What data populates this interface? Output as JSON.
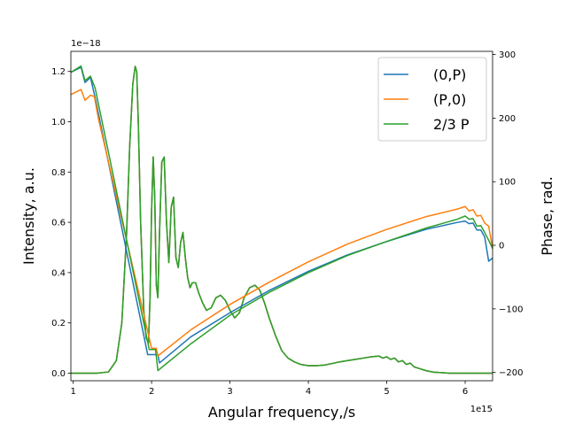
{
  "chart_data": {
    "type": "line",
    "xlabel": "Angular frequency,/s",
    "ylabel_left": "Intensity, a.u.",
    "ylabel_right": "Phase, rad.",
    "x_offset_text": "1e15",
    "y_left_offset_text": "1e−18",
    "x_scale": 1000000000000000.0,
    "y_left_scale": 1e-18,
    "xlim": [
      0.97,
      6.35
    ],
    "ylim_left": [
      -0.03,
      1.28
    ],
    "ylim_right": [
      -213,
      305
    ],
    "x_ticks": [
      1,
      2,
      3,
      4,
      5,
      6
    ],
    "y_left_ticks": [
      0.0,
      0.2,
      0.4,
      0.6,
      0.8,
      1.0,
      1.2
    ],
    "y_left_tick_labels": [
      "0.0",
      "0.2",
      "0.4",
      "0.6",
      "0.8",
      "1.0",
      "1.2"
    ],
    "y_right_ticks": [
      -200,
      -100,
      0,
      100,
      200,
      300
    ],
    "y_right_tick_labels": [
      "−200",
      "−100",
      "0",
      "100",
      "200",
      "300"
    ],
    "grid": false,
    "legend_position": "top-right",
    "intensity": {
      "x": [
        0.97,
        1.3,
        1.45,
        1.55,
        1.62,
        1.68,
        1.72,
        1.76,
        1.79,
        1.81,
        1.83,
        1.86,
        1.9,
        1.93,
        1.96,
        1.98,
        2.0,
        2.02,
        2.04,
        2.06,
        2.08,
        2.1,
        2.13,
        2.16,
        2.19,
        2.22,
        2.25,
        2.28,
        2.31,
        2.34,
        2.37,
        2.4,
        2.43,
        2.46,
        2.49,
        2.52,
        2.56,
        2.6,
        2.65,
        2.7,
        2.76,
        2.82,
        2.88,
        2.94,
        3.0,
        3.06,
        3.12,
        3.18,
        3.25,
        3.32,
        3.38,
        3.44,
        3.5,
        3.58,
        3.66,
        3.74,
        3.82,
        3.9,
        4.0,
        4.1,
        4.2,
        4.3,
        4.4,
        4.5,
        4.6,
        4.7,
        4.8,
        4.9,
        4.95,
        5.0,
        5.05,
        5.1,
        5.15,
        5.2,
        5.25,
        5.3,
        5.35,
        5.4,
        5.5,
        5.6,
        5.7,
        5.8,
        5.9,
        6.0,
        6.1,
        6.2,
        6.35
      ],
      "y": [
        0.0,
        0.0,
        0.005,
        0.05,
        0.2,
        0.55,
        0.9,
        1.15,
        1.22,
        1.2,
        1.0,
        0.6,
        0.25,
        0.14,
        0.12,
        0.3,
        0.65,
        0.86,
        0.7,
        0.35,
        0.3,
        0.55,
        0.84,
        0.86,
        0.6,
        0.44,
        0.66,
        0.7,
        0.46,
        0.42,
        0.52,
        0.56,
        0.46,
        0.38,
        0.34,
        0.36,
        0.36,
        0.32,
        0.28,
        0.25,
        0.26,
        0.3,
        0.31,
        0.29,
        0.25,
        0.22,
        0.24,
        0.3,
        0.34,
        0.35,
        0.33,
        0.28,
        0.22,
        0.15,
        0.09,
        0.06,
        0.045,
        0.035,
        0.03,
        0.03,
        0.032,
        0.038,
        0.045,
        0.05,
        0.055,
        0.06,
        0.065,
        0.068,
        0.06,
        0.065,
        0.055,
        0.06,
        0.045,
        0.05,
        0.035,
        0.04,
        0.025,
        0.02,
        0.01,
        0.004,
        0.002,
        0.0,
        0.0,
        0.0,
        0.0,
        0.0,
        0.0
      ]
    },
    "series": [
      {
        "name": "(0,P)",
        "color": "#1f77b4",
        "x": [
          0.97,
          1.1,
          1.15,
          1.22,
          1.28,
          1.95,
          2.08,
          2.1,
          2.5,
          3.0,
          3.5,
          4.0,
          4.5,
          5.0,
          5.5,
          5.9,
          6.0,
          6.05,
          6.1,
          6.15,
          6.2,
          6.25,
          6.3,
          6.35
        ],
        "y": [
          272,
          280,
          256,
          264,
          232,
          -172,
          -172,
          -185,
          -144,
          -106,
          -71,
          -41,
          -15,
          6,
          25,
          36,
          38,
          34,
          35,
          24,
          24,
          13,
          -25,
          -20
        ]
      },
      {
        "name": "(P,0)",
        "color": "#ff7f0e",
        "x": [
          0.97,
          1.1,
          1.15,
          1.22,
          1.27,
          1.32,
          2.0,
          2.06,
          2.08,
          2.5,
          3.0,
          3.5,
          4.0,
          4.5,
          5.0,
          5.5,
          5.9,
          6.0,
          6.05,
          6.1,
          6.15,
          6.2,
          6.25,
          6.3,
          6.35
        ],
        "y": [
          237,
          245,
          228,
          236,
          234,
          200,
          -162,
          -162,
          -174,
          -133,
          -93,
          -58,
          -26,
          2,
          25,
          45,
          57,
          61,
          54,
          56,
          46,
          47,
          35,
          30,
          -5
        ]
      },
      {
        "name": "2/3 P",
        "color": "#2ca02c",
        "x": [
          0.97,
          1.1,
          1.15,
          1.22,
          1.28,
          1.97,
          2.05,
          2.08,
          2.5,
          3.0,
          3.5,
          4.0,
          4.5,
          5.0,
          5.5,
          5.9,
          6.0,
          6.05,
          6.1,
          6.15,
          6.2,
          6.25,
          6.3,
          6.35
        ],
        "y": [
          272,
          282,
          259,
          266,
          247,
          -164,
          -164,
          -197,
          -155,
          -110,
          -74,
          -43,
          -16,
          6,
          27,
          41,
          46,
          41,
          42,
          30,
          31,
          20,
          8,
          -5
        ]
      }
    ]
  }
}
